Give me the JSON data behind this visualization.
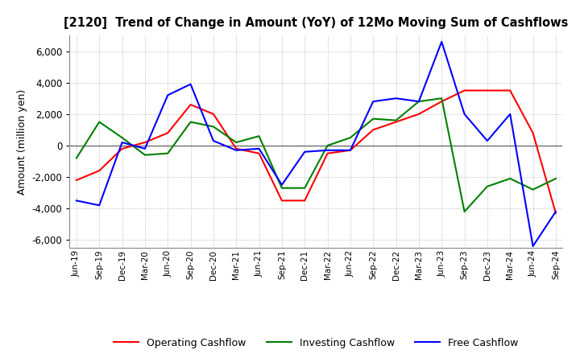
{
  "title": "[2120]  Trend of Change in Amount (YoY) of 12Mo Moving Sum of Cashflows",
  "ylabel": "Amount (million yen)",
  "ylim": [
    -6500,
    7000
  ],
  "yticks": [
    -6000,
    -4000,
    -2000,
    0,
    2000,
    4000,
    6000
  ],
  "background_color": "#ffffff",
  "grid_color": "#aaaaaa",
  "x_labels": [
    "Jun-19",
    "Sep-19",
    "Dec-19",
    "Mar-20",
    "Jun-20",
    "Sep-20",
    "Dec-20",
    "Mar-21",
    "Jun-21",
    "Sep-21",
    "Dec-21",
    "Mar-22",
    "Jun-22",
    "Sep-22",
    "Dec-22",
    "Mar-23",
    "Jun-23",
    "Sep-23",
    "Dec-23",
    "Mar-24",
    "Jun-24",
    "Sep-24"
  ],
  "operating": [
    -2200,
    -1600,
    -200,
    200,
    800,
    2600,
    2000,
    -200,
    -500,
    -3500,
    -3500,
    -500,
    -300,
    1000,
    1500,
    2000,
    2800,
    3500,
    3500,
    3500,
    800,
    -4300
  ],
  "investing": [
    -800,
    1500,
    500,
    -600,
    -500,
    1500,
    1200,
    200,
    600,
    -2700,
    -2700,
    0,
    500,
    1700,
    1600,
    2800,
    3000,
    -4200,
    -2600,
    -2100,
    -2800,
    -2100
  ],
  "free": [
    -3500,
    -3800,
    200,
    -200,
    3200,
    3900,
    300,
    -300,
    -200,
    -2500,
    -400,
    -300,
    -300,
    2800,
    3000,
    2800,
    6600,
    2000,
    300,
    2000,
    -6400,
    -4200
  ],
  "operating_color": "#ff0000",
  "investing_color": "#008000",
  "free_color": "#0000ff",
  "line_width": 1.5
}
